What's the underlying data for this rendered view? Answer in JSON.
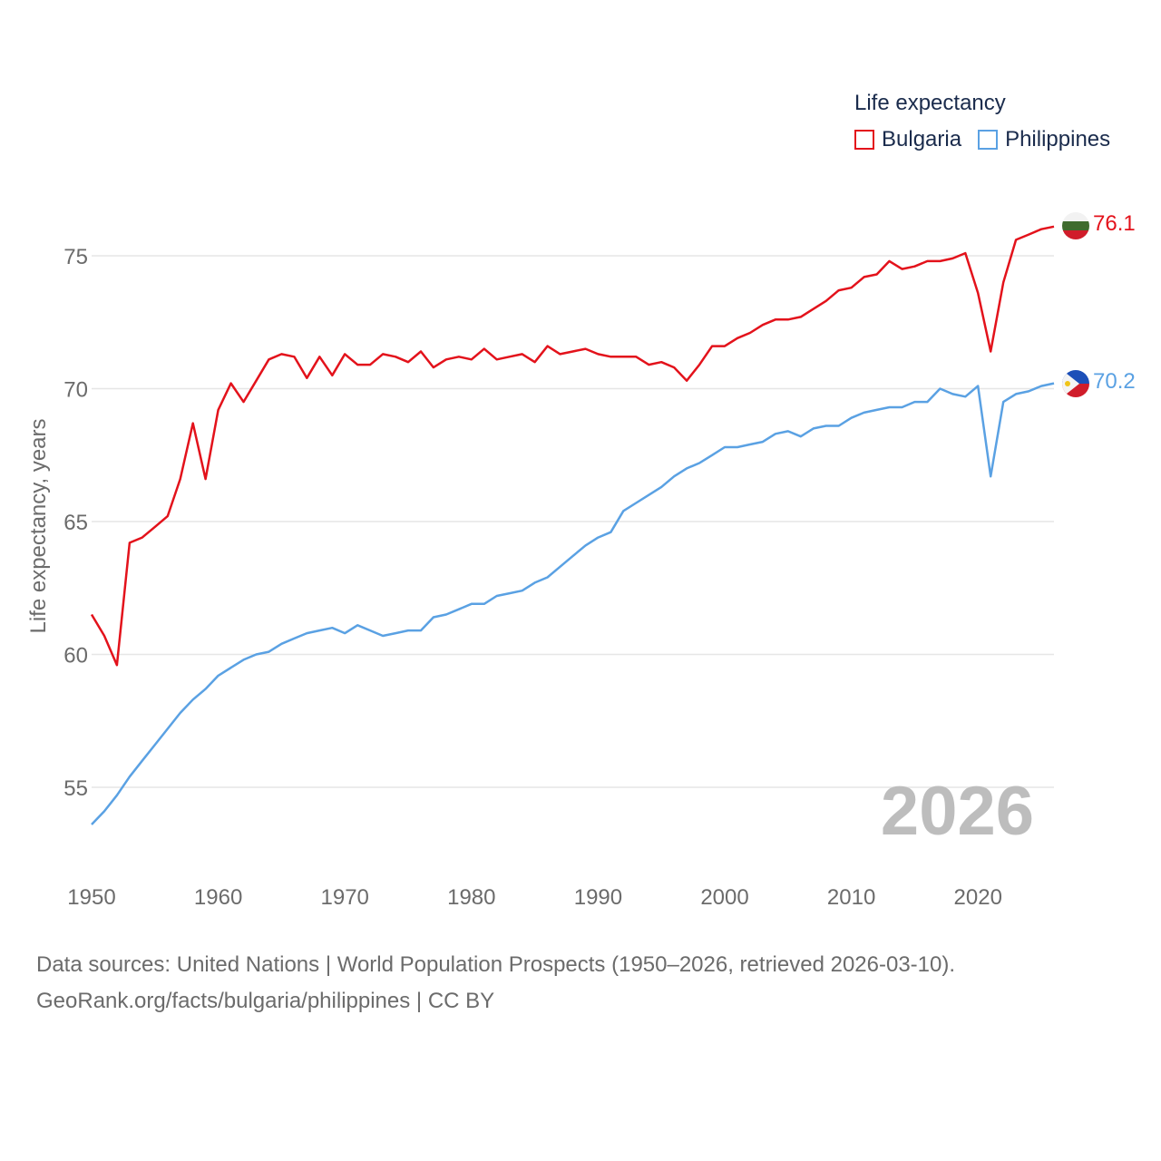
{
  "legend": {
    "title": "Life expectancy",
    "items": [
      {
        "label": "Bulgaria",
        "color": "#e3121b"
      },
      {
        "label": "Philippines",
        "color": "#5aa1e3"
      }
    ]
  },
  "year_label": "2026",
  "footer": {
    "line1": "Data sources: United Nations | World Population Prospects (1950–2026, retrieved 2026-03-10).",
    "line2": "GeoRank.org/facts/bulgaria/philippines | CC BY"
  },
  "chart_data": {
    "type": "line",
    "title": "Life expectancy",
    "xlabel": "",
    "ylabel": "Life expectancy, years",
    "xlim": [
      1950,
      2026
    ],
    "ylim": [
      53,
      78
    ],
    "x_ticks": [
      1950,
      1960,
      1970,
      1980,
      1990,
      2000,
      2010,
      2020
    ],
    "y_ticks": [
      55,
      60,
      65,
      70,
      75
    ],
    "grid": true,
    "x": [
      1950,
      1951,
      1952,
      1953,
      1954,
      1955,
      1956,
      1957,
      1958,
      1959,
      1960,
      1961,
      1962,
      1963,
      1964,
      1965,
      1966,
      1967,
      1968,
      1969,
      1970,
      1971,
      1972,
      1973,
      1974,
      1975,
      1976,
      1977,
      1978,
      1979,
      1980,
      1981,
      1982,
      1983,
      1984,
      1985,
      1986,
      1987,
      1988,
      1989,
      1990,
      1991,
      1992,
      1993,
      1994,
      1995,
      1996,
      1997,
      1998,
      1999,
      2000,
      2001,
      2002,
      2003,
      2004,
      2005,
      2006,
      2007,
      2008,
      2009,
      2010,
      2011,
      2012,
      2013,
      2014,
      2015,
      2016,
      2017,
      2018,
      2019,
      2020,
      2021,
      2022,
      2023,
      2024,
      2025,
      2026
    ],
    "series": [
      {
        "name": "Bulgaria",
        "color": "#e3121b",
        "end_label": "76.1",
        "values": [
          61.5,
          60.7,
          59.6,
          64.2,
          64.4,
          64.8,
          65.2,
          66.6,
          68.7,
          66.6,
          69.2,
          70.2,
          69.5,
          70.3,
          71.1,
          71.3,
          71.2,
          70.4,
          71.2,
          70.5,
          71.3,
          70.9,
          70.9,
          71.3,
          71.2,
          71.0,
          71.4,
          70.8,
          71.1,
          71.2,
          71.1,
          71.5,
          71.1,
          71.2,
          71.3,
          71.0,
          71.6,
          71.3,
          71.4,
          71.5,
          71.3,
          71.2,
          71.2,
          71.2,
          70.9,
          71.0,
          70.8,
          70.3,
          70.9,
          71.6,
          71.6,
          71.9,
          72.1,
          72.4,
          72.6,
          72.6,
          72.7,
          73.0,
          73.3,
          73.7,
          73.8,
          74.2,
          74.3,
          74.8,
          74.5,
          74.6,
          74.8,
          74.8,
          74.9,
          75.1,
          73.6,
          71.4,
          74.0,
          75.6,
          75.8,
          76.0,
          76.1
        ]
      },
      {
        "name": "Philippines",
        "color": "#5aa1e3",
        "end_label": "70.2",
        "values": [
          53.6,
          54.1,
          54.7,
          55.4,
          56.0,
          56.6,
          57.2,
          57.8,
          58.3,
          58.7,
          59.2,
          59.5,
          59.8,
          60.0,
          60.1,
          60.4,
          60.6,
          60.8,
          60.9,
          61.0,
          60.8,
          61.1,
          60.9,
          60.7,
          60.8,
          60.9,
          60.9,
          61.4,
          61.5,
          61.7,
          61.9,
          61.9,
          62.2,
          62.3,
          62.4,
          62.7,
          62.9,
          63.3,
          63.7,
          64.1,
          64.4,
          64.6,
          65.4,
          65.7,
          66.0,
          66.3,
          66.7,
          67.0,
          67.2,
          67.5,
          67.8,
          67.8,
          67.9,
          68.0,
          68.3,
          68.4,
          68.2,
          68.5,
          68.6,
          68.6,
          68.9,
          69.1,
          69.2,
          69.3,
          69.3,
          69.5,
          69.5,
          70.0,
          69.8,
          69.7,
          70.1,
          66.7,
          69.5,
          69.8,
          69.9,
          70.1,
          70.2
        ]
      }
    ]
  }
}
